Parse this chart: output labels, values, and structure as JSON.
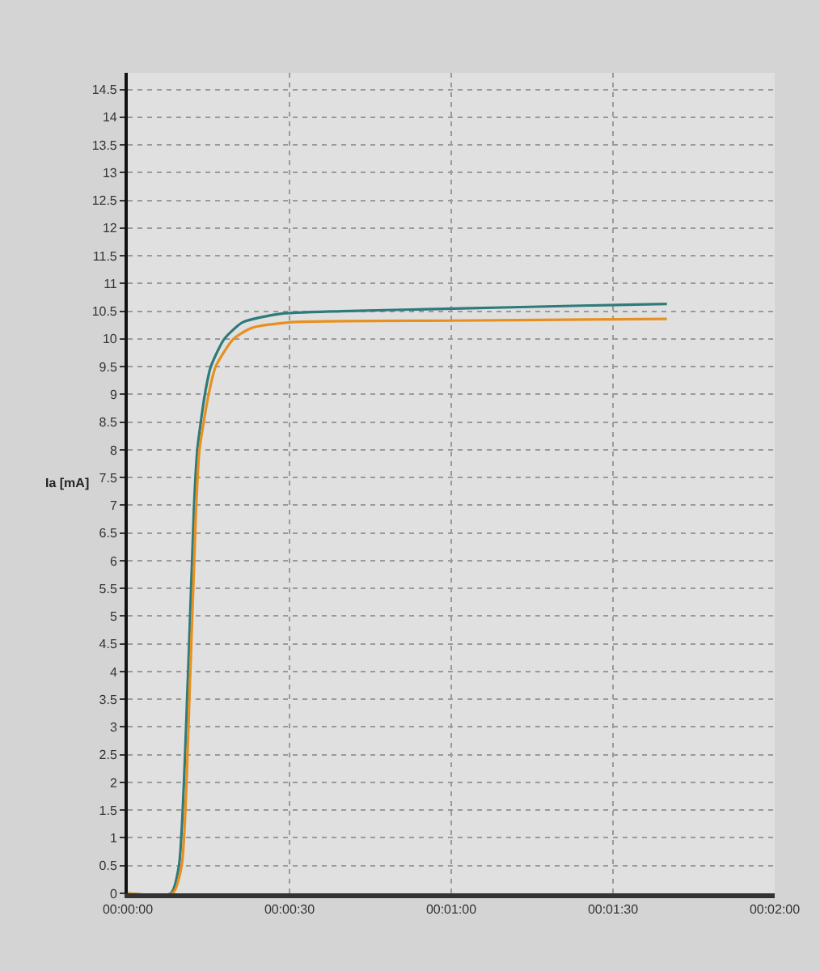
{
  "chart_data": {
    "type": "line",
    "ylabel": "Ia [mA]",
    "xlim": [
      0,
      120
    ],
    "xticks": [
      {
        "value": 0,
        "label": "00:00:00"
      },
      {
        "value": 30,
        "label": "00:00:30"
      },
      {
        "value": 60,
        "label": "00:01:00"
      },
      {
        "value": 90,
        "label": "00:01:30"
      },
      {
        "value": 120,
        "label": "00:02:00"
      }
    ],
    "ylim": [
      0,
      14.8
    ],
    "yticks": [
      0,
      0.5,
      1,
      1.5,
      2,
      2.5,
      3,
      3.5,
      4,
      4.5,
      5,
      5.5,
      6,
      6.5,
      7,
      7.5,
      8,
      8.5,
      9,
      9.5,
      10,
      10.5,
      11,
      11.5,
      12,
      12.5,
      13,
      13.5,
      14,
      14.5
    ],
    "grid": true,
    "marker": "none",
    "line_style": "solid",
    "series": [
      {
        "color": "#2f7a7a",
        "x": [
          0,
          8,
          9.5,
          11.2,
          12.3,
          12.9,
          14.3,
          15.4,
          17.9,
          21.3,
          28,
          39.5,
          62,
          84,
          100
        ],
        "values": [
          0,
          0,
          0.5,
          4,
          7,
          8,
          9,
          9.5,
          10,
          10.3,
          10.45,
          10.5,
          10.55,
          10.6,
          10.63
        ]
      },
      {
        "color": "#e8901e",
        "x": [
          0,
          8.3,
          10,
          11.6,
          12.7,
          13.3,
          15,
          16.3,
          19.6,
          23,
          30,
          60,
          85,
          100
        ],
        "values": [
          0,
          0,
          0.5,
          4,
          7,
          8,
          9,
          9.5,
          10,
          10.2,
          10.3,
          10.33,
          10.35,
          10.36
        ]
      }
    ]
  }
}
